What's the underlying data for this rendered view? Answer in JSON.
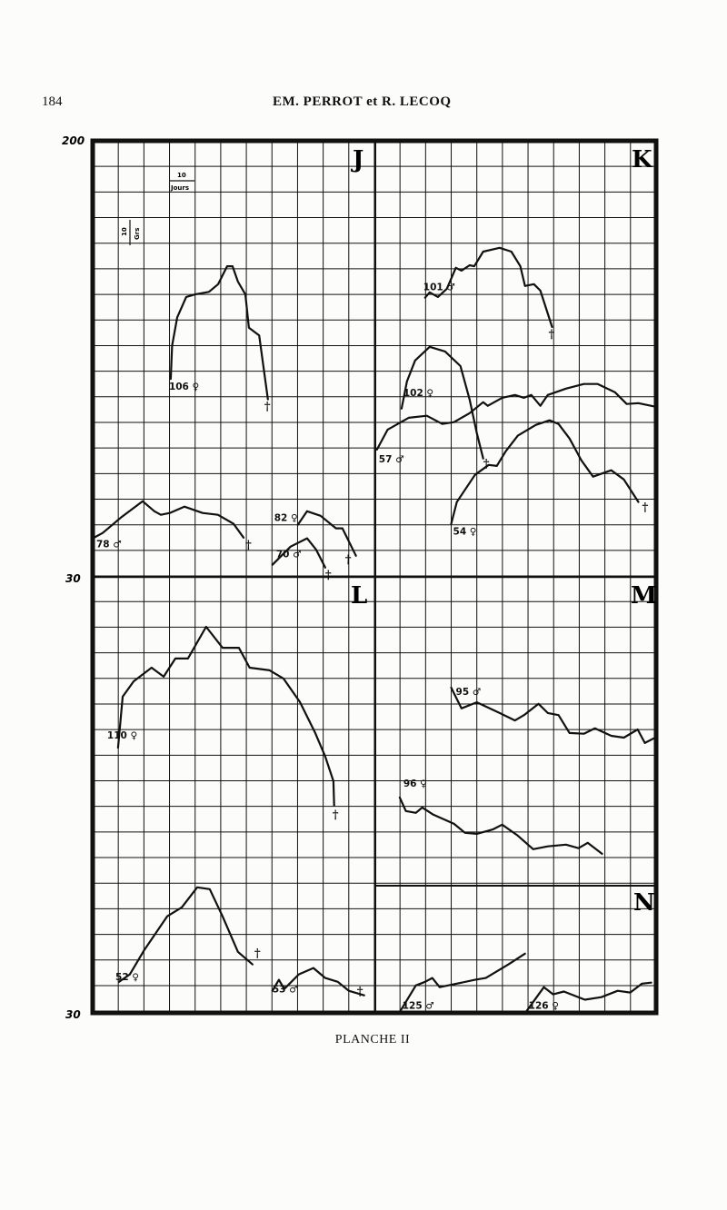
{
  "header": {
    "page_number": "184",
    "authors": "EM. PERROT et R. LECOQ"
  },
  "caption": "PLANCHE II",
  "chart_data": {
    "type": "line",
    "title": "",
    "xlabel": "",
    "ylabel": "",
    "grid": true,
    "scale_legend": {
      "x_unit_value": "10",
      "x_unit": "Jours",
      "y_unit_value": "10",
      "y_unit": "Grs"
    },
    "y_tick_labels": {
      "top_half": [
        "200",
        "30"
      ],
      "bottom_half": [
        "30"
      ]
    },
    "xlim_days": [
      0,
      220
    ],
    "ylim_grams": [
      30,
      200
    ],
    "panels": [
      "J",
      "K",
      "L",
      "M",
      "N"
    ],
    "series": [
      {
        "name": "106 ♀",
        "panel": "J",
        "half": "top",
        "died": true,
        "x": [
          30.5,
          31,
          33,
          36.5,
          40,
          45.4,
          49,
          52.5,
          54.6,
          56.7,
          59.6,
          61,
          65,
          68.4
        ],
        "y": [
          107,
          120,
          131,
          139,
          140,
          141,
          144,
          151,
          151,
          145,
          140,
          127,
          124,
          99
        ]
      },
      {
        "name": "78 ♂",
        "panel": "J",
        "half": "top",
        "died": true,
        "x": [
          0,
          3.9,
          11,
          19.5,
          24.1,
          26.6,
          30.1,
          35.8,
          42.9,
          48.9,
          55,
          58.9
        ],
        "y": [
          44.7,
          46.8,
          52.8,
          59.2,
          55.3,
          53.9,
          54.6,
          57.1,
          54.6,
          53.9,
          50.4,
          45
        ]
      },
      {
        "name": "82 ♀",
        "panel": "J",
        "half": "top",
        "died": true,
        "x": [
          80.1,
          83.7,
          89,
          95,
          97.5,
          102.8
        ],
        "y": [
          50,
          55.3,
          53.5,
          48.6,
          48.6,
          37.9
        ]
      },
      {
        "name": "70 ♂",
        "panel": "J",
        "half": "top",
        "died": true,
        "x": [
          70.2,
          77.3,
          83.7,
          87.2,
          90.8
        ],
        "y": [
          34.4,
          41.5,
          44.7,
          40.4,
          33.3
        ]
      },
      {
        "name": "101 ♂",
        "panel": "K",
        "half": "top",
        "died": true,
        "x": [
          129.8,
          131.6,
          134.8,
          138.3,
          141.8,
          144,
          147.2,
          149,
          152.5,
          158.9,
          163.5,
          167,
          168.8,
          172.3,
          174.8,
          179.4
        ],
        "y": [
          138.7,
          140.8,
          139,
          142.2,
          150.4,
          149.3,
          151.4,
          151,
          156.7,
          158.2,
          156.7,
          151,
          143.3,
          144,
          141.5,
          127.3
        ]
      },
      {
        "name": "102 ♀",
        "panel": "K",
        "half": "top",
        "died": true,
        "x": [
          120.6,
          122.7,
          125.9,
          131.6,
          137.6,
          143.6,
          147.2,
          150,
          152.5
        ],
        "y": [
          95.4,
          106,
          114.2,
          119.5,
          117.7,
          112,
          98.9,
          85.8,
          75.9
        ]
      },
      {
        "name": "57 ♂",
        "panel": "K",
        "half": "top",
        "died": false,
        "x": [
          111,
          115.2,
          123.4,
          130.5,
          136.5,
          141.1,
          147.2,
          152.5,
          154.3,
          159.9,
          164.9,
          168.4,
          171.3,
          174.8,
          177.7,
          184.8,
          191.8,
          197.2,
          203.9,
          208.5,
          213.1,
          219.9
        ],
        "y": [
          79.4,
          87.2,
          91.8,
          92.6,
          89.4,
          90.1,
          93.6,
          97.9,
          96.5,
          99.6,
          100.7,
          99.6,
          100.7,
          96.5,
          100.7,
          103.2,
          105,
          105,
          101.8,
          97.2,
          97.5,
          96.1
        ]
      },
      {
        "name": "54 ♀",
        "panel": "K",
        "half": "top",
        "died": true,
        "x": [
          140,
          142.2,
          149.3,
          154.6,
          157.8,
          161.3,
          166,
          173,
          178.4,
          181.9,
          186.2,
          190.8,
          195.4,
          202.5,
          207.4,
          213.1
        ],
        "y": [
          50.4,
          58.9,
          69.5,
          73.4,
          73,
          78.7,
          84.8,
          89,
          90.8,
          89.4,
          83.7,
          75.2,
          68.8,
          71.3,
          67.7,
          58.9
        ]
      },
      {
        "name": "110 ♀",
        "panel": "L",
        "half": "bottom",
        "died": true,
        "x": [
          9.9,
          11.7,
          16,
          23,
          27.7,
          32.3,
          37.2,
          44.3,
          50.7,
          57.1,
          61.3,
          69.1,
          74.5,
          80.9,
          86.9,
          90.8,
          94,
          94.3
        ],
        "y": [
          133.3,
          153.2,
          159.2,
          164.5,
          161,
          168.1,
          168.1,
          180.5,
          172.3,
          172.3,
          164.5,
          163.5,
          160.3,
          151.1,
          139,
          129.8,
          120.2,
          110.6
        ]
      },
      {
        "name": "52 ♀",
        "panel": "L",
        "half": "bottom",
        "died": true,
        "x": [
          10.3,
          14.5,
          20.2,
          29.1,
          34.8,
          40.8,
          45.7,
          50.7,
          56.7,
          62.4
        ],
        "y": [
          41.8,
          44.7,
          54.3,
          67.4,
          70.9,
          78.7,
          78,
          67.4,
          53.5,
          48.6
        ]
      },
      {
        "name": "53 ♂",
        "panel": "L",
        "half": "bottom",
        "died": true,
        "x": [
          70.2,
          72.7,
          74.8,
          80.5,
          86.2,
          90.8,
          95.7,
          100,
          106
        ],
        "y": [
          38.3,
          42.6,
          39,
          44.7,
          47.2,
          43.3,
          41.8,
          38.3,
          36.5
        ]
      },
      {
        "name": "95 ♂",
        "panel": "M",
        "half": "bottom",
        "died": false,
        "x": [
          140,
          144,
          150,
          158.9,
          164.9,
          168.4,
          174.1,
          177.7,
          181.9,
          186.2,
          191.8,
          196.1,
          202.5,
          207.4,
          212.8,
          215.6,
          219.1
        ],
        "y": [
          156.7,
          148.6,
          151,
          146.8,
          143.9,
          146,
          150.4,
          146.8,
          146,
          139,
          138.7,
          140.8,
          137.9,
          137.2,
          140.4,
          135.1,
          136.9
        ]
      },
      {
        "name": "96 ♀",
        "panel": "M",
        "half": "bottom",
        "died": false,
        "x": [
          119.9,
          122.3,
          126.2,
          128.7,
          133,
          141.1,
          145.4,
          150,
          156.4,
          159.9,
          166,
          172,
          177.7,
          184.8,
          189.7,
          193.3,
          198.9
        ],
        "y": [
          113.8,
          108.5,
          107.8,
          109.9,
          107.1,
          103.5,
          100,
          99.6,
          101.4,
          103.2,
          98.9,
          93.6,
          94.7,
          95.4,
          94,
          96.1,
          91.8
        ]
      },
      {
        "name": "125 ♂",
        "panel": "N",
        "half": "bottom",
        "died": false,
        "x": [
          120.2,
          126.2,
          129.8,
          132.6,
          135.5,
          142.2,
          149.3,
          153.5,
          162.4,
          168.8
        ],
        "y": [
          30.5,
          40.4,
          41.8,
          43.3,
          39.7,
          41.1,
          42.6,
          43.3,
          48.6,
          52.8
        ]
      },
      {
        "name": "126 ♀",
        "panel": "N",
        "half": "bottom",
        "died": false,
        "x": [
          169.5,
          176.2,
          179.8,
          184,
          192.2,
          198.6,
          205,
          209.9,
          214.5,
          218.1
        ],
        "y": [
          30.5,
          39.7,
          36.9,
          38,
          34.8,
          35.8,
          38.3,
          37.6,
          41.1,
          41.5
        ]
      }
    ],
    "death_marker": "†",
    "colors": {
      "ink": "#111111",
      "paper": "#fcfcfb"
    }
  }
}
